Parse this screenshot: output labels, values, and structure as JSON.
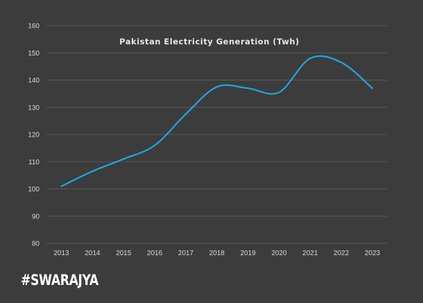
{
  "chart_data": {
    "type": "line",
    "title": "Pakistan Electricity Generation (Twh)",
    "xlabel": "",
    "ylabel": "",
    "categories": [
      "2013",
      "2014",
      "2015",
      "2016",
      "2017",
      "2018",
      "2019",
      "2020",
      "2021",
      "2022",
      "2023"
    ],
    "series": [
      {
        "name": "Electricity Generation (Twh)",
        "values": [
          101,
          106.5,
          111,
          116,
          127.5,
          137.5,
          137,
          135.5,
          148,
          146.5,
          137
        ],
        "color": "#1fa7dd"
      }
    ],
    "yticks": [
      "160",
      "150",
      "140",
      "130",
      "120",
      "110",
      "100",
      "90",
      "80"
    ],
    "ylim": [
      80,
      160
    ],
    "grid": true
  },
  "branding": {
    "watermark": "#SWARAJYA"
  },
  "colors": {
    "background": "#3c3c3c",
    "gridline": "#5a5a5a",
    "line": "#1fa7dd"
  }
}
